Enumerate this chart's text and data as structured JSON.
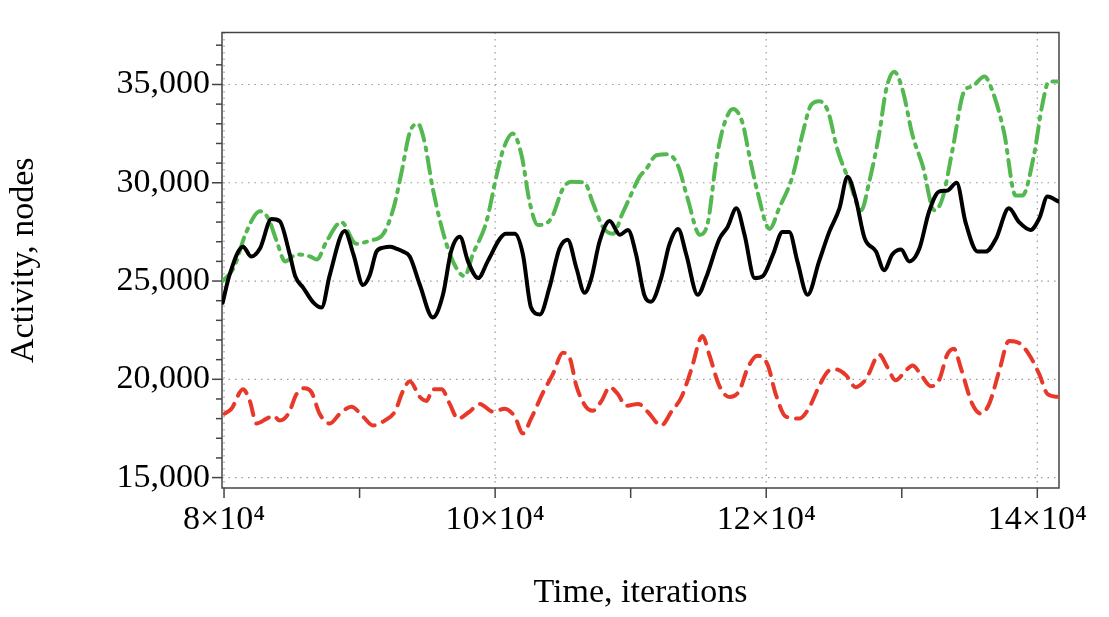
{
  "chart_data": {
    "type": "line",
    "xlabel": "Time, iterations",
    "ylabel": "Activity, nodes",
    "grid": true,
    "xlim": [
      79850,
      141600
    ],
    "ylim": [
      14470,
      37650
    ],
    "xticks": [
      {
        "value": 80000,
        "label": "8×10⁴"
      },
      {
        "value": 90000,
        "label": null
      },
      {
        "value": 100000,
        "label": "10×10⁴"
      },
      {
        "value": 110000,
        "label": null
      },
      {
        "value": 120000,
        "label": "12×10⁴"
      },
      {
        "value": 130000,
        "label": null
      },
      {
        "value": 140000,
        "label": "14×10⁴"
      }
    ],
    "yticks": [
      {
        "value": 15000,
        "label": "15,000"
      },
      {
        "value": 16000,
        "label": null
      },
      {
        "value": 17000,
        "label": null
      },
      {
        "value": 18000,
        "label": null
      },
      {
        "value": 19000,
        "label": null
      },
      {
        "value": 20000,
        "label": "20,000"
      },
      {
        "value": 21000,
        "label": null
      },
      {
        "value": 22000,
        "label": null
      },
      {
        "value": 23000,
        "label": null
      },
      {
        "value": 24000,
        "label": null
      },
      {
        "value": 25000,
        "label": "25,000"
      },
      {
        "value": 26000,
        "label": null
      },
      {
        "value": 27000,
        "label": null
      },
      {
        "value": 28000,
        "label": null
      },
      {
        "value": 29000,
        "label": null
      },
      {
        "value": 30000,
        "label": "30,000"
      },
      {
        "value": 31000,
        "label": null
      },
      {
        "value": 32000,
        "label": null
      },
      {
        "value": 33000,
        "label": null
      },
      {
        "value": 34000,
        "label": null
      },
      {
        "value": 35000,
        "label": "35,000"
      },
      {
        "value": 36000,
        "label": null
      },
      {
        "value": 37000,
        "label": null
      }
    ],
    "series": [
      {
        "color": "#000000",
        "line_style": "solid",
        "x": [
          79900,
          80400,
          81400,
          82000,
          82650,
          83500,
          84100,
          84850,
          85250,
          85850,
          86600,
          87200,
          87800,
          88900,
          89550,
          90250,
          90750,
          91250,
          91750,
          92250,
          92700,
          93200,
          93700,
          94450,
          95400,
          96150,
          96750,
          97400,
          98000,
          98750,
          99450,
          100350,
          100800,
          101450,
          102050,
          102650,
          103300,
          104000,
          104750,
          105350,
          106000,
          106600,
          107100,
          107700,
          108450,
          109200,
          109800,
          110400,
          111000,
          111500,
          112250,
          112850,
          113500,
          114100,
          114950,
          115550,
          116550,
          117150,
          117800,
          118400,
          119150,
          119750,
          120500,
          121200,
          121700,
          122300,
          123050,
          123900,
          124650,
          125400,
          126000,
          126600,
          127250,
          128100,
          128700,
          129300,
          129950,
          130550,
          131300,
          132000,
          132750,
          133350,
          134050,
          134700,
          135600,
          136200,
          136950,
          137900,
          138650,
          139500,
          140150,
          140750,
          141550
        ],
        "values": [
          23900,
          25300,
          26750,
          26250,
          26650,
          28150,
          28050,
          26350,
          25250,
          24650,
          23900,
          23650,
          25300,
          27550,
          26350,
          24800,
          25300,
          26500,
          26700,
          26750,
          26650,
          26500,
          26250,
          24800,
          23150,
          24300,
          26500,
          27250,
          26000,
          25150,
          26000,
          27150,
          27400,
          27400,
          26350,
          23650,
          23300,
          24650,
          26650,
          27100,
          25650,
          24400,
          25150,
          27000,
          28050,
          27350,
          27600,
          26350,
          24300,
          23950,
          25150,
          26850,
          27650,
          26350,
          24300,
          25150,
          27150,
          27750,
          28700,
          27350,
          25150,
          25250,
          26350,
          27500,
          27500,
          26000,
          24300,
          26000,
          27500,
          28700,
          30300,
          29200,
          27200,
          26500,
          25550,
          26350,
          26600,
          26000,
          26650,
          28500,
          29550,
          29600,
          30000,
          28000,
          26500,
          26500,
          27150,
          28700,
          28000,
          27600,
          28200,
          29300,
          29050
        ]
      },
      {
        "color": "#e8382a",
        "line_style": "dashed",
        "x": [
          80050,
          80550,
          81400,
          81900,
          82400,
          83150,
          83650,
          84100,
          84750,
          85350,
          85950,
          86450,
          87050,
          87800,
          88550,
          89400,
          90250,
          91000,
          91850,
          92600,
          93200,
          93700,
          94450,
          94950,
          95400,
          96050,
          96650,
          97250,
          98100,
          98850,
          99850,
          100700,
          101450,
          102050,
          102650,
          103550,
          104250,
          105000,
          105500,
          106000,
          106700,
          107200,
          107850,
          108450,
          109050,
          109650,
          110550,
          111250,
          112250,
          113000,
          113750,
          114450,
          115300,
          115800,
          116550,
          117300,
          118000,
          118650,
          119350,
          120100,
          120700,
          121450,
          122450,
          123200,
          123900,
          124650,
          125150,
          125900,
          126600,
          127350,
          128350,
          128950,
          129550,
          130300,
          130800,
          131400,
          132150,
          132750,
          133350,
          133850,
          134350,
          135200,
          135850,
          136450,
          137200,
          137900,
          138650,
          139400,
          140150,
          140750,
          141550
        ],
        "values": [
          18250,
          18500,
          19500,
          18900,
          17750,
          18000,
          18150,
          17900,
          18250,
          19250,
          19550,
          19350,
          18250,
          17750,
          18250,
          18600,
          18100,
          17650,
          17900,
          18350,
          19400,
          19900,
          19100,
          18900,
          19500,
          19500,
          18750,
          18000,
          18350,
          18750,
          18350,
          18500,
          18100,
          17250,
          18000,
          19350,
          20250,
          21350,
          21100,
          19650,
          18600,
          18400,
          18900,
          19600,
          19250,
          18650,
          18750,
          18350,
          17650,
          18350,
          19100,
          20450,
          22200,
          21250,
          19650,
          19100,
          19400,
          20600,
          21200,
          20750,
          19250,
          18100,
          18000,
          18600,
          19650,
          20450,
          20500,
          20200,
          19600,
          20000,
          21250,
          20600,
          19950,
          20450,
          20700,
          20250,
          19650,
          19950,
          21250,
          21550,
          20600,
          18750,
          18250,
          18750,
          20450,
          21950,
          21850,
          21250,
          20250,
          19250,
          19100
        ]
      },
      {
        "color": "#52b84f",
        "line_style": "dashdot",
        "x": [
          79900,
          80700,
          81650,
          82650,
          83250,
          83900,
          84500,
          85350,
          86350,
          86850,
          87550,
          88650,
          89750,
          90750,
          91750,
          92500,
          93100,
          93700,
          94300,
          94800,
          95400,
          96400,
          97150,
          97750,
          98350,
          99350,
          100100,
          100600,
          101300,
          101950,
          102550,
          103150,
          104150,
          105000,
          105600,
          106600,
          107200,
          107950,
          108700,
          109400,
          109900,
          110650,
          111150,
          111900,
          112750,
          113500,
          114200,
          115100,
          115700,
          116300,
          116800,
          117550,
          118250,
          118750,
          119350,
          120250,
          120950,
          121950,
          122700,
          123300,
          123900,
          124550,
          125250,
          126150,
          127000,
          127600,
          128350,
          128850,
          129450,
          130050,
          130800,
          131550,
          132400,
          133000,
          133750,
          134600,
          135200,
          136100,
          136700,
          137550,
          138400,
          138900,
          139750,
          140350,
          140850,
          141550
        ],
        "values": [
          25000,
          25650,
          27500,
          28550,
          28200,
          27000,
          26000,
          26350,
          26250,
          26100,
          27000,
          28000,
          26900,
          27050,
          27400,
          28700,
          30550,
          32550,
          33000,
          32050,
          29700,
          26900,
          25650,
          25250,
          26350,
          28000,
          30350,
          31700,
          32500,
          31400,
          29000,
          27850,
          28200,
          29700,
          30050,
          30000,
          29000,
          27750,
          27400,
          28450,
          29200,
          30300,
          30700,
          31400,
          31450,
          30850,
          29200,
          27350,
          28000,
          31050,
          32750,
          33750,
          33050,
          31400,
          29550,
          27650,
          28700,
          30350,
          32550,
          33950,
          34150,
          33650,
          31700,
          30050,
          28600,
          30050,
          32550,
          34750,
          35650,
          34750,
          32400,
          30850,
          28600,
          29200,
          31700,
          34650,
          34900,
          35400,
          34650,
          32550,
          29350,
          29350,
          31400,
          33900,
          35150,
          35150
        ]
      }
    ]
  }
}
